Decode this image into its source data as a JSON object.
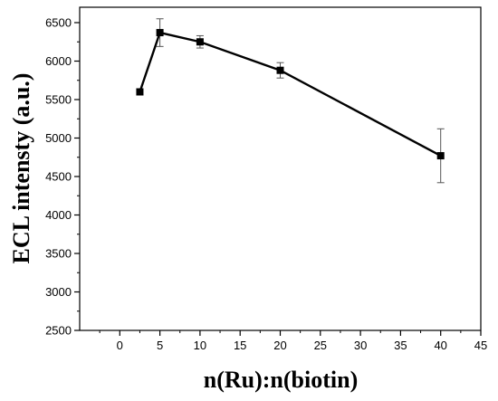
{
  "chart_data": {
    "type": "line",
    "title": "",
    "xlabel": "n(Ru):n(biotin)",
    "ylabel": "ECL intensty (a.u.)",
    "xlim": [
      -5,
      45
    ],
    "ylim": [
      2500,
      6700
    ],
    "xticks": [
      0,
      5,
      10,
      15,
      20,
      25,
      30,
      35,
      40,
      45
    ],
    "yticks": [
      2500,
      3000,
      3500,
      4000,
      4500,
      5000,
      5500,
      6000,
      6500
    ],
    "series": [
      {
        "x": [
          2.5,
          5,
          10,
          20,
          40
        ],
        "y": [
          5600,
          6370,
          6250,
          5880,
          4770
        ],
        "yerr": [
          40,
          180,
          80,
          100,
          350
        ]
      }
    ],
    "grid": false,
    "marker": "square",
    "color": "#000000"
  }
}
